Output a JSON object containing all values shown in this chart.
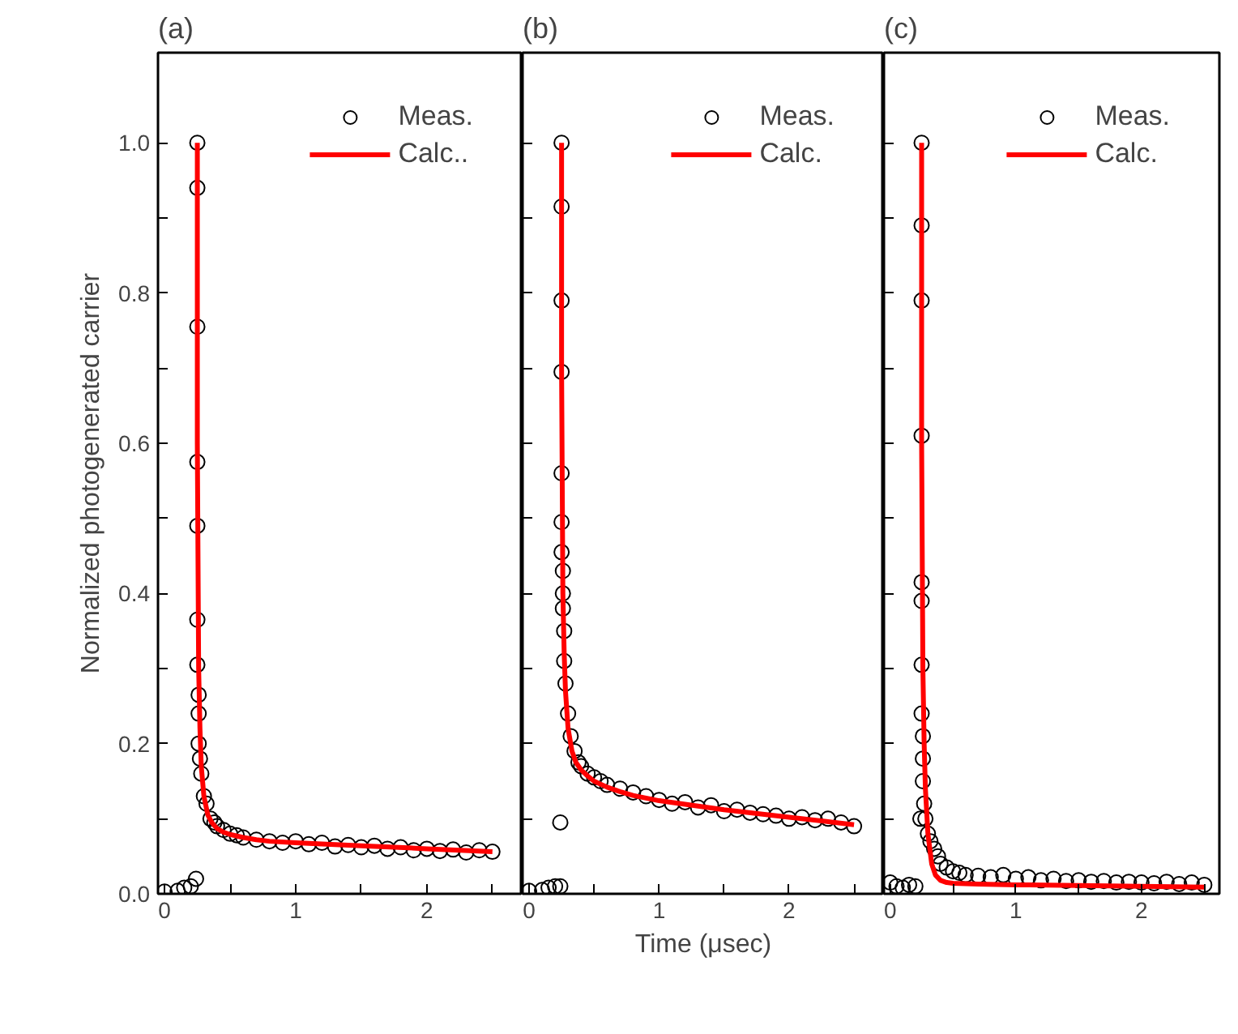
{
  "chart_data": [
    {
      "type": "scatter",
      "title": "(a)",
      "ylabel": "Normalized photogenerated carrier",
      "xlim": [
        -0.05,
        2.73
      ],
      "ylim": [
        0,
        1.12
      ],
      "xticks": [
        0,
        {
          "value": 0.5,
          "label": null
        },
        1,
        {
          "value": 1.5,
          "label": null
        },
        2,
        {
          "value": 2.5,
          "label": null
        }
      ],
      "yticks": [
        {
          "value": 0,
          "label": "0.0"
        },
        {
          "value": 0.1,
          "label": null
        },
        0.2,
        {
          "value": 0.3,
          "label": null
        },
        0.4,
        {
          "value": 0.5,
          "label": null
        },
        0.6,
        {
          "value": 0.7,
          "label": null
        },
        0.8,
        {
          "value": 0.9,
          "label": null
        },
        {
          "value": 1,
          "label": "1.0"
        }
      ],
      "marker": "circle",
      "legend": "top right",
      "grid": false,
      "series": [
        {
          "name": "Meas.",
          "color": "#000000",
          "x": [
            0.0,
            0.1,
            0.15,
            0.2,
            0.24,
            0.25,
            0.25,
            0.25,
            0.25,
            0.25,
            0.25,
            0.25,
            0.26,
            0.26,
            0.26,
            0.27,
            0.28,
            0.3,
            0.32,
            0.35,
            0.38,
            0.4,
            0.45,
            0.5,
            0.55,
            0.6,
            0.7,
            0.8,
            0.9,
            1.0,
            1.1,
            1.2,
            1.3,
            1.4,
            1.5,
            1.6,
            1.7,
            1.8,
            1.9,
            2.0,
            2.1,
            2.2,
            2.3,
            2.4,
            2.5
          ],
          "values": [
            0.003,
            0.004,
            0.008,
            0.01,
            0.02,
            1.0,
            0.94,
            0.755,
            0.575,
            0.49,
            0.365,
            0.305,
            0.265,
            0.24,
            0.2,
            0.18,
            0.16,
            0.13,
            0.12,
            0.1,
            0.095,
            0.09,
            0.085,
            0.08,
            0.078,
            0.075,
            0.072,
            0.07,
            0.068,
            0.07,
            0.066,
            0.068,
            0.063,
            0.065,
            0.062,
            0.064,
            0.06,
            0.062,
            0.058,
            0.06,
            0.057,
            0.059,
            0.055,
            0.058,
            0.056
          ]
        },
        {
          "name": "Calc..",
          "type": "line",
          "marker": "none",
          "color": "#ff0000",
          "x": [
            0.25,
            0.25,
            0.26,
            0.27,
            0.28,
            0.3,
            0.33,
            0.36,
            0.4,
            0.45,
            0.5,
            0.6,
            0.7,
            0.8,
            1.0,
            1.5,
            2.0,
            2.5
          ],
          "values": [
            1.0,
            0.6,
            0.3,
            0.22,
            0.17,
            0.13,
            0.105,
            0.095,
            0.087,
            0.082,
            0.079,
            0.075,
            0.072,
            0.07,
            0.068,
            0.064,
            0.06,
            0.056
          ]
        }
      ]
    },
    {
      "type": "scatter",
      "title": "(b)",
      "xlabel": "Time (μsec)",
      "xlim": [
        -0.05,
        2.73
      ],
      "ylim": [
        0,
        1.12
      ],
      "xticks": [
        0,
        {
          "value": 0.5,
          "label": null
        },
        1,
        {
          "value": 1.5,
          "label": null
        },
        2,
        {
          "value": 2.5,
          "label": null
        }
      ],
      "yticks": [
        0,
        0.1,
        0.2,
        0.3,
        0.4,
        0.5,
        0.6,
        0.7,
        0.8,
        0.9,
        1
      ],
      "tick_labels": "x",
      "marker": "circle",
      "legend": "top right",
      "grid": false,
      "series": [
        {
          "name": "Meas.",
          "color": "#000000",
          "x": [
            0.0,
            0.1,
            0.15,
            0.2,
            0.24,
            0.24,
            0.25,
            0.25,
            0.25,
            0.25,
            0.25,
            0.25,
            0.25,
            0.26,
            0.26,
            0.26,
            0.27,
            0.27,
            0.28,
            0.3,
            0.32,
            0.35,
            0.38,
            0.4,
            0.45,
            0.5,
            0.55,
            0.6,
            0.7,
            0.8,
            0.9,
            1.0,
            1.1,
            1.2,
            1.3,
            1.4,
            1.5,
            1.6,
            1.7,
            1.8,
            1.9,
            2.0,
            2.1,
            2.2,
            2.3,
            2.4,
            2.5
          ],
          "values": [
            0.004,
            0.005,
            0.008,
            0.01,
            0.095,
            0.01,
            1.0,
            0.915,
            0.79,
            0.695,
            0.56,
            0.495,
            0.455,
            0.43,
            0.4,
            0.38,
            0.35,
            0.31,
            0.28,
            0.24,
            0.21,
            0.19,
            0.175,
            0.17,
            0.16,
            0.155,
            0.15,
            0.145,
            0.14,
            0.135,
            0.13,
            0.125,
            0.12,
            0.122,
            0.115,
            0.118,
            0.11,
            0.112,
            0.108,
            0.106,
            0.104,
            0.1,
            0.102,
            0.098,
            0.1,
            0.095,
            0.09
          ]
        },
        {
          "name": "Calc.",
          "type": "line",
          "marker": "none",
          "color": "#ff0000",
          "x": [
            0.25,
            0.25,
            0.26,
            0.27,
            0.28,
            0.3,
            0.33,
            0.36,
            0.4,
            0.45,
            0.5,
            0.6,
            0.7,
            0.8,
            1.0,
            1.5,
            2.0,
            2.5
          ],
          "values": [
            1.0,
            0.7,
            0.4,
            0.32,
            0.27,
            0.22,
            0.19,
            0.175,
            0.165,
            0.157,
            0.15,
            0.142,
            0.136,
            0.131,
            0.124,
            0.112,
            0.102,
            0.092
          ]
        }
      ]
    },
    {
      "type": "scatter",
      "title": "(c)",
      "xlim": [
        -0.05,
        2.62
      ],
      "ylim": [
        0,
        1.12
      ],
      "xticks": [
        0,
        {
          "value": 0.5,
          "label": null
        },
        1,
        {
          "value": 1.5,
          "label": null
        },
        2,
        {
          "value": 2.5,
          "label": null
        }
      ],
      "yticks": [
        0,
        0.1,
        0.2,
        0.3,
        0.4,
        0.5,
        0.6,
        0.7,
        0.8,
        0.9,
        1
      ],
      "tick_labels": "x",
      "marker": "circle",
      "legend": "top right",
      "grid": false,
      "series": [
        {
          "name": "Meas.",
          "color": "#000000",
          "x": [
            0.0,
            0.05,
            0.1,
            0.15,
            0.2,
            0.24,
            0.25,
            0.25,
            0.25,
            0.25,
            0.25,
            0.25,
            0.25,
            0.25,
            0.26,
            0.26,
            0.26,
            0.27,
            0.28,
            0.3,
            0.32,
            0.35,
            0.38,
            0.4,
            0.45,
            0.5,
            0.55,
            0.6,
            0.7,
            0.8,
            0.9,
            1.0,
            1.1,
            1.2,
            1.3,
            1.4,
            1.5,
            1.6,
            1.7,
            1.8,
            1.9,
            2.0,
            2.1,
            2.2,
            2.3,
            2.4,
            2.5
          ],
          "values": [
            0.015,
            0.01,
            0.008,
            0.012,
            0.01,
            0.1,
            1.0,
            0.89,
            0.79,
            0.61,
            0.415,
            0.39,
            0.305,
            0.24,
            0.21,
            0.18,
            0.15,
            0.12,
            0.1,
            0.08,
            0.07,
            0.06,
            0.05,
            0.04,
            0.035,
            0.03,
            0.028,
            0.025,
            0.024,
            0.022,
            0.025,
            0.02,
            0.022,
            0.018,
            0.02,
            0.017,
            0.018,
            0.016,
            0.017,
            0.015,
            0.016,
            0.015,
            0.014,
            0.016,
            0.013,
            0.015,
            0.012
          ]
        },
        {
          "name": "Calc.",
          "type": "line",
          "marker": "none",
          "color": "#ff0000",
          "x": [
            0.25,
            0.25,
            0.26,
            0.27,
            0.28,
            0.3,
            0.33,
            0.36,
            0.4,
            0.45,
            0.5,
            0.7,
            1.0,
            1.5,
            2.0,
            2.5
          ],
          "values": [
            1.0,
            0.6,
            0.3,
            0.2,
            0.14,
            0.08,
            0.04,
            0.025,
            0.018,
            0.015,
            0.014,
            0.013,
            0.012,
            0.011,
            0.01,
            0.009
          ]
        }
      ]
    }
  ]
}
